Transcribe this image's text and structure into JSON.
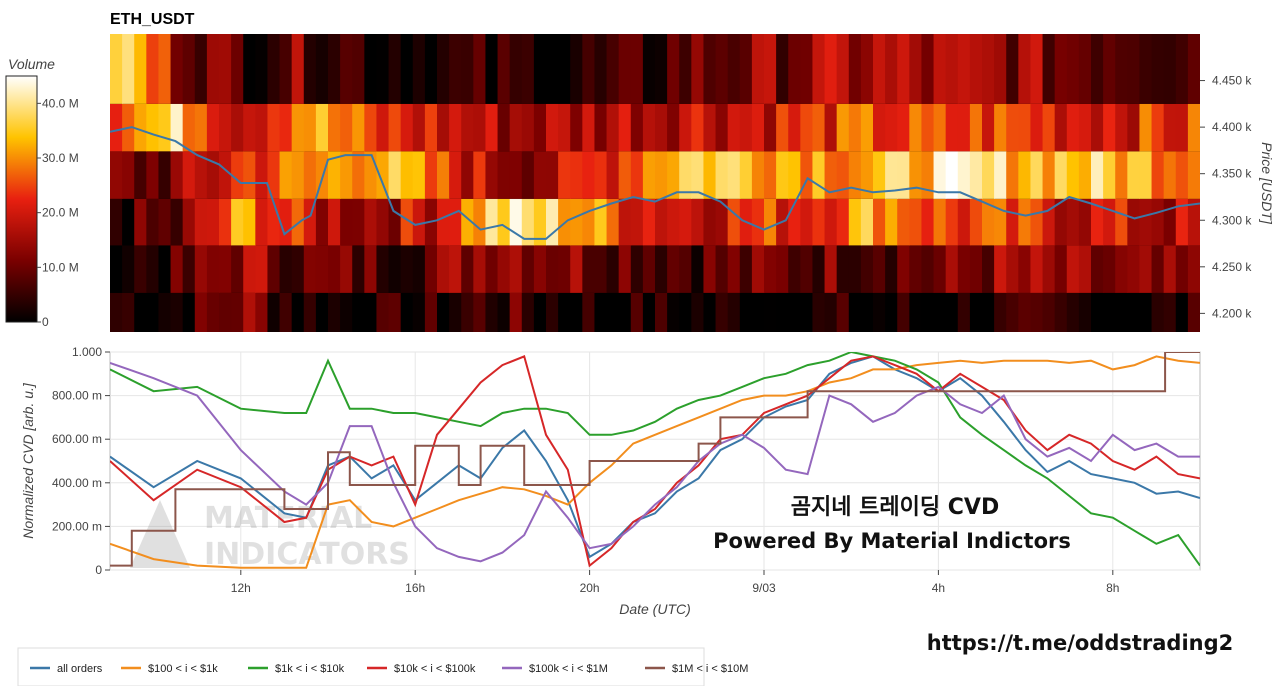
{
  "chart_data": [
    {
      "type": "heatmap",
      "title": "ETH_USDT",
      "ylabel": "Price [USDT]",
      "ylim": [
        4180,
        4500
      ],
      "yticks": [
        "4.200 k",
        "4.250 k",
        "4.300 k",
        "4.350 k",
        "4.400 k",
        "4.450 k"
      ],
      "ytick_values": [
        4200,
        4250,
        4300,
        4350,
        4400,
        4450
      ],
      "colorbar": {
        "title": "Volume",
        "range": [
          0,
          45
        ],
        "ticks": [
          "0",
          "10.0 M",
          "20.0 M",
          "30.0 M",
          "40.0 M"
        ],
        "tick_values": [
          0,
          10,
          20,
          30,
          40
        ]
      },
      "bands": [
        {
          "y0": 4180,
          "y1": 4222,
          "levels": [
            0.1,
            0.05,
            0.3,
            0.05,
            0.02,
            0.04,
            0.15,
            0.06,
            0.03,
            0.02,
            0.02,
            0.02,
            0.02,
            0.02,
            0.02,
            0.03,
            0.02,
            0.02
          ]
        },
        {
          "y0": 4222,
          "y1": 4273,
          "levels": [
            0.08,
            0.1,
            0.35,
            0.2,
            0.18,
            0.22,
            0.4,
            0.3,
            0.25,
            0.2,
            0.18,
            0.22,
            0.25,
            0.2,
            0.3,
            0.25,
            0.2,
            0.18
          ]
        },
        {
          "y0": 4273,
          "y1": 4323,
          "levels": [
            0.12,
            0.15,
            0.7,
            0.4,
            0.35,
            0.45,
            0.85,
            0.8,
            0.55,
            0.45,
            0.5,
            0.55,
            0.75,
            0.55,
            0.5,
            0.45,
            0.4,
            0.35
          ]
        },
        {
          "y0": 4323,
          "y1": 4374,
          "levels": [
            0.2,
            0.25,
            0.55,
            0.6,
            0.8,
            0.55,
            0.35,
            0.35,
            0.6,
            0.85,
            0.8,
            0.75,
            0.7,
            0.85,
            0.8,
            0.8,
            0.75,
            0.7
          ]
        },
        {
          "y0": 4374,
          "y1": 4425,
          "levels": [
            0.65,
            0.8,
            0.45,
            0.75,
            0.5,
            0.45,
            0.35,
            0.35,
            0.4,
            0.45,
            0.45,
            0.5,
            0.55,
            0.5,
            0.55,
            0.5,
            0.5,
            0.5
          ]
        },
        {
          "y0": 4425,
          "y1": 4500,
          "levels": [
            0.9,
            0.35,
            0.15,
            0.25,
            0.1,
            0.05,
            0.05,
            0.05,
            0.05,
            0.2,
            0.25,
            0.3,
            0.35,
            0.3,
            0.3,
            0.25,
            0.25,
            0.2
          ]
        }
      ],
      "series": [
        {
          "name": "price",
          "color": "#3b78a8",
          "x": [
            0.0,
            0.5,
            1.0,
            1.5,
            2.0,
            2.5,
            3.0,
            3.2,
            3.6,
            4.0,
            4.4,
            4.6,
            5.0,
            5.4,
            5.8,
            6.0,
            6.5,
            7.0,
            7.5,
            8.0,
            8.5,
            9.0,
            9.5,
            10.0,
            10.5,
            11.0,
            11.5,
            12.0,
            12.5,
            13.0,
            13.5,
            14.0,
            14.5,
            15.0,
            15.5,
            16.0,
            16.5,
            17.0,
            17.5,
            18.0,
            18.5,
            19.0,
            19.5,
            20.0,
            20.5,
            21.0,
            21.5,
            22.0,
            22.5,
            23.0,
            23.5,
            24.0,
            24.5,
            25.0
          ],
          "y": [
            4395,
            4400,
            4392,
            4385,
            4370,
            4360,
            4340,
            4340,
            4340,
            4285,
            4300,
            4305,
            4365,
            4370,
            4370,
            4370,
            4310,
            4295,
            4300,
            4310,
            4290,
            4295,
            4280,
            4280,
            4300,
            4310,
            4318,
            4325,
            4320,
            4330,
            4330,
            4320,
            4300,
            4290,
            4300,
            4345,
            4330,
            4335,
            4330,
            4332,
            4335,
            4330,
            4330,
            4320,
            4310,
            4305,
            4310,
            4325,
            4318,
            4310,
            4302,
            4308,
            4315,
            4318
          ]
        }
      ]
    },
    {
      "type": "line",
      "xlabel": "Date (UTC)",
      "ylabel": "Normalized CVD [arb. u.]",
      "ylim": [
        0,
        1
      ],
      "xlim": [
        0,
        25
      ],
      "xticks": [
        "12h",
        "16h",
        "20h",
        "9/03",
        "4h",
        "8h"
      ],
      "xtick_values": [
        3,
        7,
        11,
        15,
        19,
        23
      ],
      "yticks": [
        "0",
        "200.00 m",
        "400.00 m",
        "600.00 m",
        "800.00 m",
        "1.000"
      ],
      "ytick_values": [
        0,
        0.2,
        0.4,
        0.6,
        0.8,
        1.0
      ],
      "legend_position": "bottom-left",
      "series": [
        {
          "name": "all orders",
          "color": "#3b78a8",
          "x": [
            0,
            1,
            2,
            3,
            4,
            4.5,
            5,
            5.5,
            6,
            6.5,
            7,
            7.5,
            8,
            8.5,
            9,
            9.5,
            10,
            10.5,
            11,
            11.5,
            12,
            12.5,
            13,
            13.5,
            14,
            14.5,
            15,
            15.5,
            16,
            16.5,
            17,
            17.5,
            18,
            18.5,
            19,
            19.5,
            20,
            20.5,
            21,
            21.5,
            22,
            22.5,
            23,
            23.5,
            24,
            24.5,
            25
          ],
          "y": [
            0.52,
            0.38,
            0.5,
            0.42,
            0.26,
            0.24,
            0.48,
            0.52,
            0.42,
            0.48,
            0.32,
            0.4,
            0.48,
            0.42,
            0.56,
            0.64,
            0.5,
            0.32,
            0.06,
            0.12,
            0.22,
            0.26,
            0.36,
            0.42,
            0.55,
            0.6,
            0.7,
            0.75,
            0.78,
            0.9,
            0.95,
            0.98,
            0.92,
            0.88,
            0.82,
            0.88,
            0.8,
            0.68,
            0.55,
            0.45,
            0.5,
            0.44,
            0.42,
            0.4,
            0.35,
            0.36,
            0.33
          ]
        },
        {
          "name": "$100 < i < $1k",
          "color": "#f28e1e",
          "x": [
            0,
            1,
            2,
            3,
            4,
            4.5,
            5,
            5.5,
            6,
            6.5,
            7,
            7.5,
            8,
            8.5,
            9,
            9.5,
            10,
            10.5,
            11,
            11.5,
            12,
            12.5,
            13,
            13.5,
            14,
            14.5,
            15,
            15.5,
            16,
            16.5,
            17,
            17.5,
            18,
            18.5,
            19,
            19.5,
            20,
            20.5,
            21,
            21.5,
            22,
            22.5,
            23,
            23.5,
            24,
            24.5,
            25
          ],
          "y": [
            0.12,
            0.05,
            0.02,
            0.01,
            0.01,
            0.01,
            0.3,
            0.32,
            0.22,
            0.2,
            0.24,
            0.28,
            0.32,
            0.35,
            0.38,
            0.37,
            0.34,
            0.3,
            0.4,
            0.48,
            0.58,
            0.62,
            0.66,
            0.7,
            0.74,
            0.78,
            0.8,
            0.8,
            0.82,
            0.86,
            0.88,
            0.92,
            0.92,
            0.94,
            0.95,
            0.96,
            0.95,
            0.96,
            0.96,
            0.96,
            0.95,
            0.96,
            0.92,
            0.94,
            0.98,
            0.96,
            0.95
          ]
        },
        {
          "name": "$1k < i < $10k",
          "color": "#2ca02c",
          "x": [
            0,
            1,
            2,
            3,
            4,
            4.5,
            5,
            5.5,
            6,
            6.5,
            7,
            7.5,
            8,
            8.5,
            9,
            9.5,
            10,
            10.5,
            11,
            11.5,
            12,
            12.5,
            13,
            13.5,
            14,
            14.5,
            15,
            15.5,
            16,
            16.5,
            17,
            17.5,
            18,
            18.5,
            19,
            19.5,
            20,
            20.5,
            21,
            21.5,
            22,
            22.5,
            23,
            23.5,
            24,
            24.5,
            25
          ],
          "y": [
            0.92,
            0.82,
            0.84,
            0.74,
            0.72,
            0.72,
            0.96,
            0.74,
            0.74,
            0.72,
            0.72,
            0.7,
            0.68,
            0.66,
            0.72,
            0.74,
            0.74,
            0.72,
            0.62,
            0.62,
            0.64,
            0.68,
            0.74,
            0.78,
            0.8,
            0.84,
            0.88,
            0.9,
            0.94,
            0.96,
            1.0,
            0.98,
            0.96,
            0.92,
            0.86,
            0.7,
            0.62,
            0.55,
            0.48,
            0.42,
            0.34,
            0.26,
            0.24,
            0.18,
            0.12,
            0.16,
            0.02
          ]
        },
        {
          "name": "$10k < i < $100k",
          "color": "#d62728",
          "x": [
            0,
            1,
            2,
            3,
            4,
            4.5,
            5,
            5.5,
            6,
            6.5,
            7,
            7.5,
            8,
            8.5,
            9,
            9.5,
            10,
            10.5,
            11,
            11.5,
            12,
            12.5,
            13,
            13.5,
            14,
            14.5,
            15,
            15.5,
            16,
            16.5,
            17,
            17.5,
            18,
            18.5,
            19,
            19.5,
            20,
            20.5,
            21,
            21.5,
            22,
            22.5,
            23,
            23.5,
            24,
            24.5,
            25
          ],
          "y": [
            0.5,
            0.32,
            0.46,
            0.38,
            0.22,
            0.24,
            0.46,
            0.52,
            0.48,
            0.52,
            0.3,
            0.62,
            0.74,
            0.86,
            0.94,
            0.98,
            0.62,
            0.46,
            0.02,
            0.1,
            0.22,
            0.28,
            0.4,
            0.48,
            0.6,
            0.62,
            0.72,
            0.76,
            0.8,
            0.88,
            0.96,
            0.98,
            0.94,
            0.9,
            0.82,
            0.9,
            0.84,
            0.78,
            0.64,
            0.55,
            0.62,
            0.58,
            0.5,
            0.46,
            0.52,
            0.44,
            0.42
          ]
        },
        {
          "name": "$100k < i < $1M",
          "color": "#9467bd",
          "x": [
            0,
            1,
            2,
            3,
            4,
            4.5,
            5,
            5.5,
            6,
            6.5,
            7,
            7.5,
            8,
            8.5,
            9,
            9.5,
            10,
            10.5,
            11,
            11.5,
            12,
            12.5,
            13,
            13.5,
            14,
            14.5,
            15,
            15.5,
            16,
            16.5,
            17,
            17.5,
            18,
            18.5,
            19,
            19.5,
            20,
            20.5,
            21,
            21.5,
            22,
            22.5,
            23,
            23.5,
            24,
            24.5,
            25
          ],
          "y": [
            0.95,
            0.88,
            0.8,
            0.55,
            0.36,
            0.3,
            0.4,
            0.66,
            0.66,
            0.4,
            0.2,
            0.1,
            0.06,
            0.04,
            0.08,
            0.16,
            0.36,
            0.24,
            0.1,
            0.12,
            0.2,
            0.3,
            0.38,
            0.5,
            0.58,
            0.62,
            0.56,
            0.46,
            0.44,
            0.8,
            0.76,
            0.68,
            0.72,
            0.8,
            0.84,
            0.76,
            0.72,
            0.8,
            0.6,
            0.52,
            0.56,
            0.5,
            0.62,
            0.55,
            0.58,
            0.52,
            0.52
          ]
        },
        {
          "name": "$1M < i < $10M",
          "color": "#8c564b",
          "x": [
            0,
            0.2,
            0.5,
            1.5,
            2.5,
            4.0,
            5.0,
            5.5,
            6.5,
            7.0,
            7.5,
            8.0,
            8.5,
            9.0,
            9.5,
            10.0,
            11.0,
            13.0,
            13.5,
            14.0,
            15.0,
            16.0,
            17.0,
            18.0,
            19.0,
            20.0,
            21.0,
            22.0,
            23.0,
            24.0,
            24.2,
            25.0
          ],
          "y": [
            0.02,
            0.02,
            0.18,
            0.37,
            0.37,
            0.28,
            0.54,
            0.39,
            0.39,
            0.57,
            0.57,
            0.39,
            0.57,
            0.57,
            0.39,
            0.39,
            0.5,
            0.5,
            0.58,
            0.7,
            0.7,
            0.82,
            0.82,
            0.82,
            0.82,
            0.82,
            0.82,
            0.82,
            0.82,
            0.82,
            1.0,
            1.0
          ]
        }
      ]
    }
  ],
  "watermark": {
    "line1": "MATERIAL",
    "line2": "INDICATORS"
  },
  "overlay": {
    "line1": "곰지네 트레이딩 CVD",
    "line2": "Powered By Material Indictors"
  },
  "link": "https://t.me/oddstrading2"
}
